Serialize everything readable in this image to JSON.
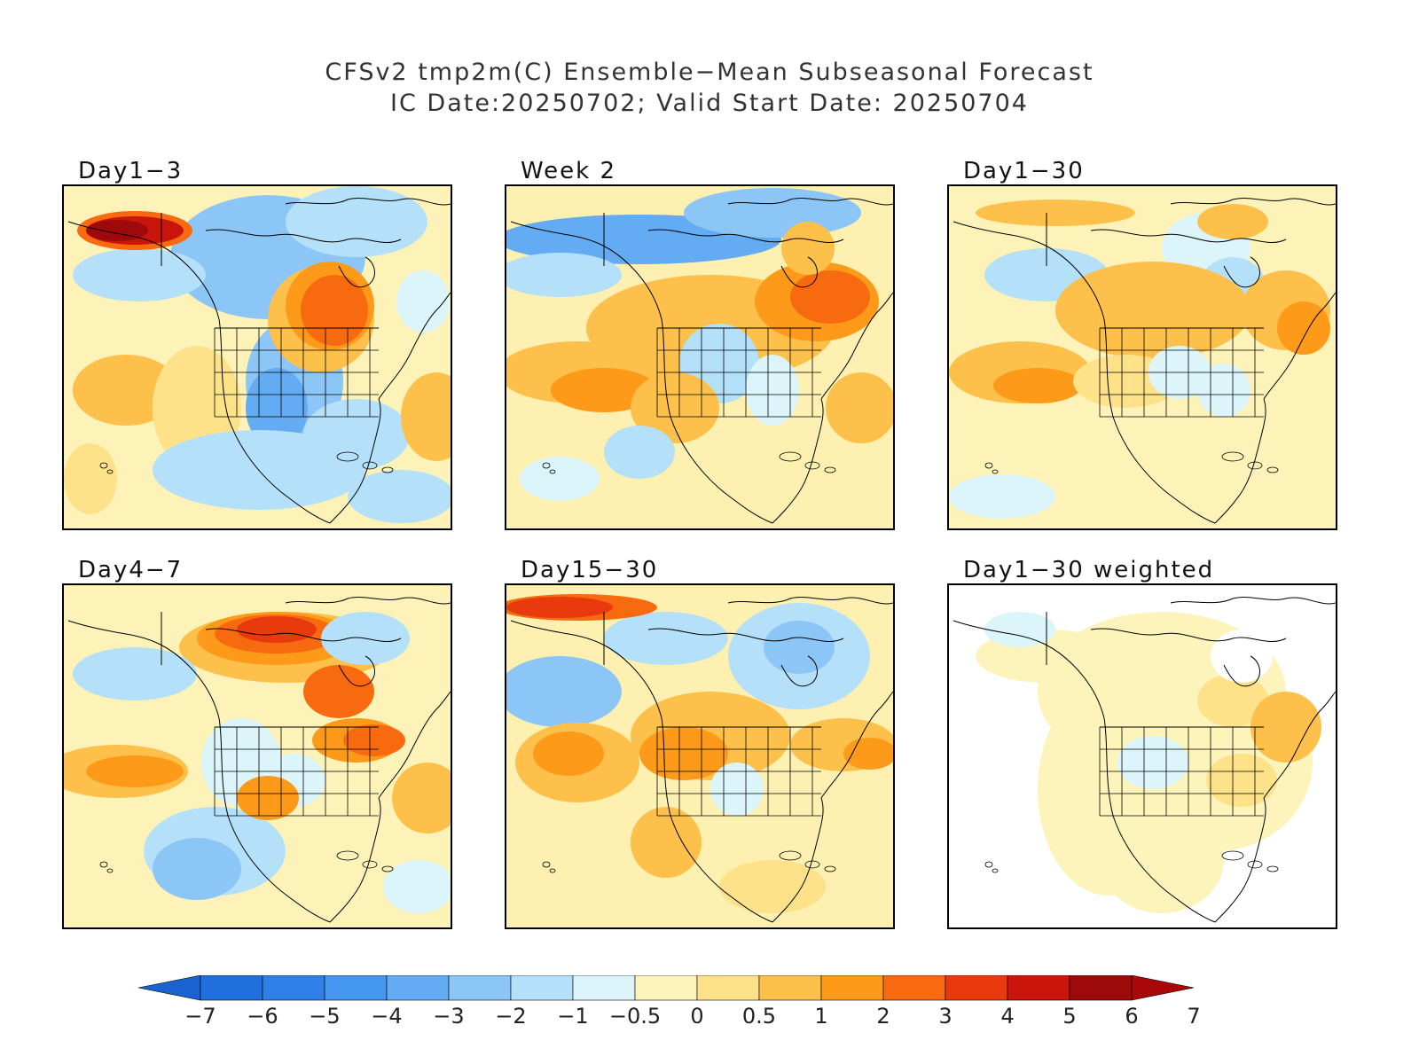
{
  "title": {
    "line1": "CFSv2 tmp2m(C) Ensemble−Mean Subseasonal Forecast",
    "line2": "IC Date:20250702; Valid Start Date: 20250704"
  },
  "panels": [
    {
      "label": "Day1−3",
      "bg": "#fdf3b8",
      "pattern": "day1_3"
    },
    {
      "label": "Week 2",
      "bg": "#fdf0b0",
      "pattern": "week2"
    },
    {
      "label": "Day1−30",
      "bg": "#fdf3b8",
      "pattern": "day1_30"
    },
    {
      "label": "Day4−7",
      "bg": "#fdf3b8",
      "pattern": "day4_7"
    },
    {
      "label": "Day15−30",
      "bg": "#fdf0b0",
      "pattern": "day15_30"
    },
    {
      "label": "Day1−30 weighted",
      "bg": "#ffffff",
      "pattern": "weighted"
    }
  ],
  "colorbar": {
    "labels": [
      "−7",
      "−6",
      "−5",
      "−4",
      "−3",
      "−2",
      "−1",
      "−0.5",
      "0",
      "0.5",
      "1",
      "2",
      "3",
      "4",
      "5",
      "6",
      "7"
    ],
    "colors": [
      "#1f6fdc",
      "#2f80e8",
      "#4496f0",
      "#63acf4",
      "#8cc6f7",
      "#b4e0f9",
      "#dbf5fb",
      "#fdf4bb",
      "#fde28a",
      "#fdc04a",
      "#fd9a1a",
      "#f86a10",
      "#e83a0c",
      "#c9150b",
      "#9e0a0a"
    ],
    "left_arrow_color": "#1a62d0",
    "right_arrow_color": "#a80808"
  }
}
